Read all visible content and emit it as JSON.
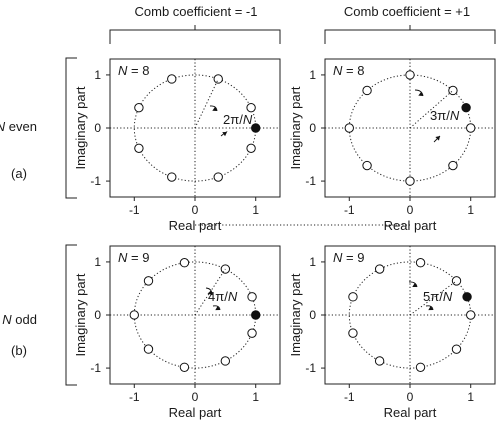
{
  "headers": {
    "left": "Comb coefficient = -1",
    "right": "Comb coefficient = +1"
  },
  "rows": {
    "even": {
      "label_prefix": "N",
      "label_suffix": " even",
      "tag": "(a)"
    },
    "odd": {
      "label_prefix": "N",
      "label_suffix": " odd",
      "tag": "(b)"
    }
  },
  "axis": {
    "xlabel": "Real part",
    "ylabel": "Imaginary part",
    "xticks": [
      "-1",
      "0",
      "1"
    ],
    "yticks": [
      "1",
      "0",
      "-1"
    ],
    "xlim": [
      -1.4,
      1.4
    ],
    "ylim": [
      -1.3,
      1.3
    ]
  },
  "chart_data": [
    {
      "type": "scatter",
      "id": "tl",
      "n_label": "N = 8",
      "N": 8,
      "comb_coefficient": -1,
      "angle_label": "2π/N",
      "zeros": {
        "start_angle_pi": 0.125,
        "step_pi": 0.25
      },
      "filled_point": [
        1,
        0
      ]
    },
    {
      "type": "scatter",
      "id": "tr",
      "n_label": "N = 8",
      "N": 8,
      "comb_coefficient": 1,
      "angle_label": "3π/N",
      "zeros": {
        "start_angle_pi": 0,
        "step_pi": 0.25
      },
      "filled_point": [
        0.924,
        0.383
      ]
    },
    {
      "type": "scatter",
      "id": "bl",
      "n_label": "N = 9",
      "N": 9,
      "comb_coefficient": -1,
      "angle_label": "4π/N",
      "zeros": {
        "start_angle_pi": 0.1111,
        "step_pi": 0.2222
      },
      "filled_point": [
        1,
        0
      ]
    },
    {
      "type": "scatter",
      "id": "br",
      "n_label": "N = 9",
      "N": 9,
      "comb_coefficient": 1,
      "angle_label": "5π/N",
      "zeros": {
        "start_angle_pi": 0,
        "step_pi": 0.2222
      },
      "filled_point": [
        0.94,
        0.342
      ]
    }
  ]
}
